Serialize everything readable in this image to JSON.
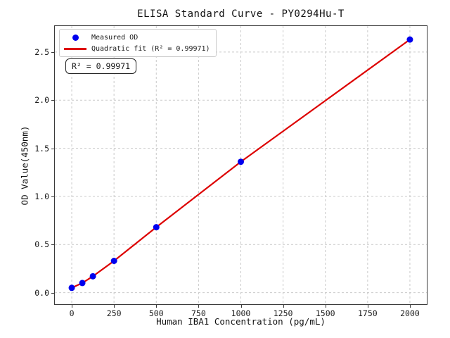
{
  "chart_data": {
    "type": "scatter",
    "title": "ELISA Standard Curve - PY0294Hu-T",
    "xlabel": "Human IBA1 Concentration (pg/mL)",
    "ylabel": "OD Value(450nm)",
    "x": [
      0,
      62.5,
      125,
      250,
      500,
      1000,
      2000
    ],
    "series": [
      {
        "name": "Measured OD",
        "type": "scatter",
        "color": "#0000ee",
        "values": [
          0.05,
          0.1,
          0.17,
          0.33,
          0.68,
          1.36,
          2.63
        ]
      },
      {
        "name": "Quadratic fit (R² = 0.99971)",
        "type": "line",
        "color": "#dd0000",
        "r_squared": 0.99971
      }
    ],
    "xlim": [
      -100,
      2100
    ],
    "ylim": [
      -0.12,
      2.77
    ],
    "xticks": [
      0,
      250,
      500,
      750,
      1000,
      1250,
      1500,
      1750,
      2000
    ],
    "yticks": [
      "0.0",
      "0.5",
      "1.0",
      "1.5",
      "2.0",
      "2.5"
    ],
    "grid": true,
    "grid_style": "dashed",
    "legend_position": "upper left"
  },
  "legend": {
    "items": [
      {
        "label": "Measured OD",
        "marker": "blue-dot"
      },
      {
        "label": "Quadratic fit (R² = 0.99971)",
        "marker": "red-line"
      }
    ]
  },
  "annotation": {
    "text": "R² = 0.99971"
  },
  "colors": {
    "marker": "#0000ee",
    "fit_line": "#dd0000",
    "grid": "#c9c9c9",
    "spine": "#3a3a3a",
    "background": "#ffffff"
  }
}
